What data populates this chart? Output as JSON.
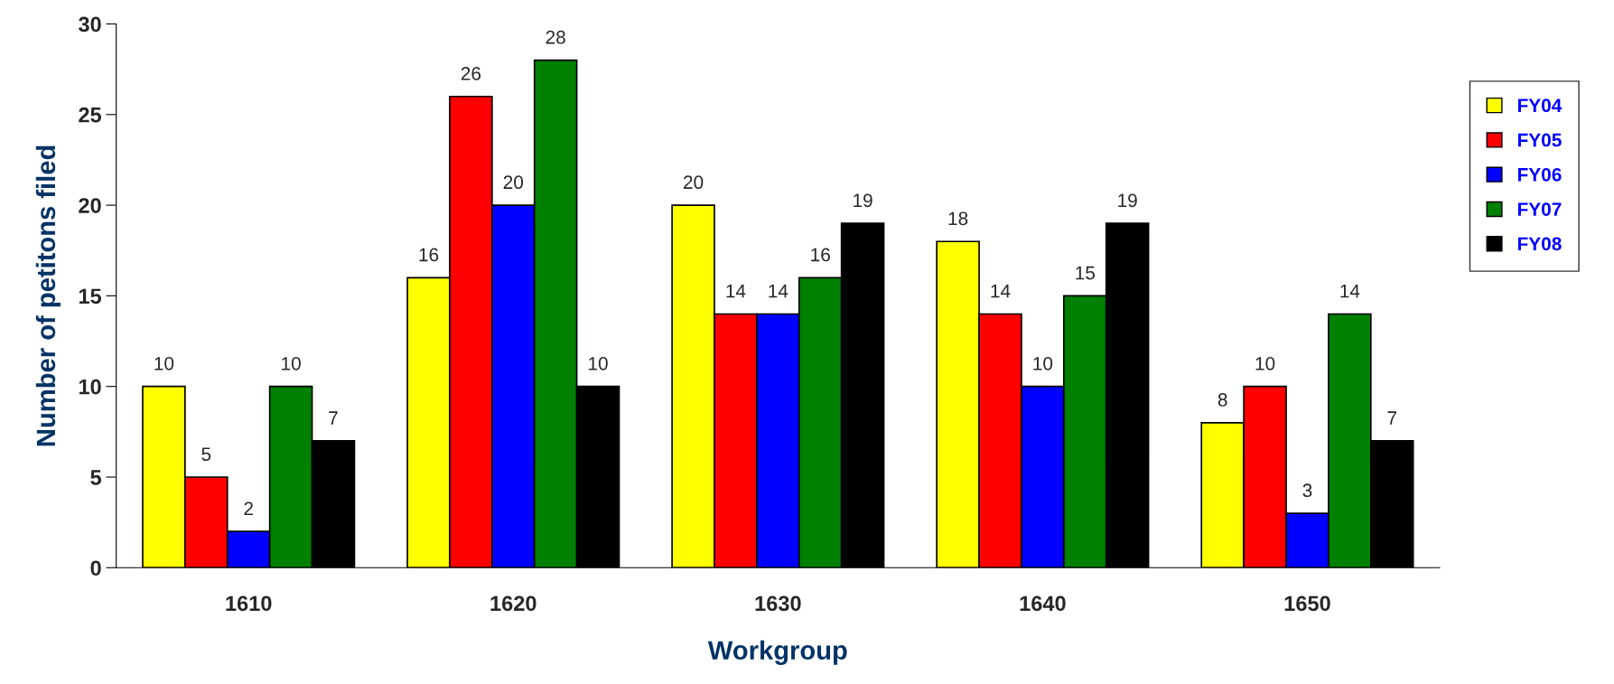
{
  "chart_data": {
    "type": "bar",
    "xlabel": "Workgroup",
    "ylabel": "Number of petitons filed",
    "categories": [
      "1610",
      "1620",
      "1630",
      "1640",
      "1650"
    ],
    "series": [
      {
        "name": "FY04",
        "color": "#ffff00",
        "values": [
          10,
          16,
          20,
          18,
          8
        ]
      },
      {
        "name": "FY05",
        "color": "#ff0000",
        "values": [
          5,
          26,
          14,
          14,
          10
        ]
      },
      {
        "name": "FY06",
        "color": "#0000ff",
        "values": [
          2,
          20,
          14,
          10,
          3
        ]
      },
      {
        "name": "FY07",
        "color": "#008000",
        "values": [
          10,
          28,
          16,
          15,
          14
        ]
      },
      {
        "name": "FY08",
        "color": "#000000",
        "values": [
          7,
          10,
          19,
          19,
          7
        ]
      }
    ],
    "ylim": [
      0,
      30
    ],
    "yticks": [
      0,
      5,
      10,
      15,
      20,
      25,
      30
    ],
    "grid": false,
    "legend": "right",
    "data_labels": true
  }
}
